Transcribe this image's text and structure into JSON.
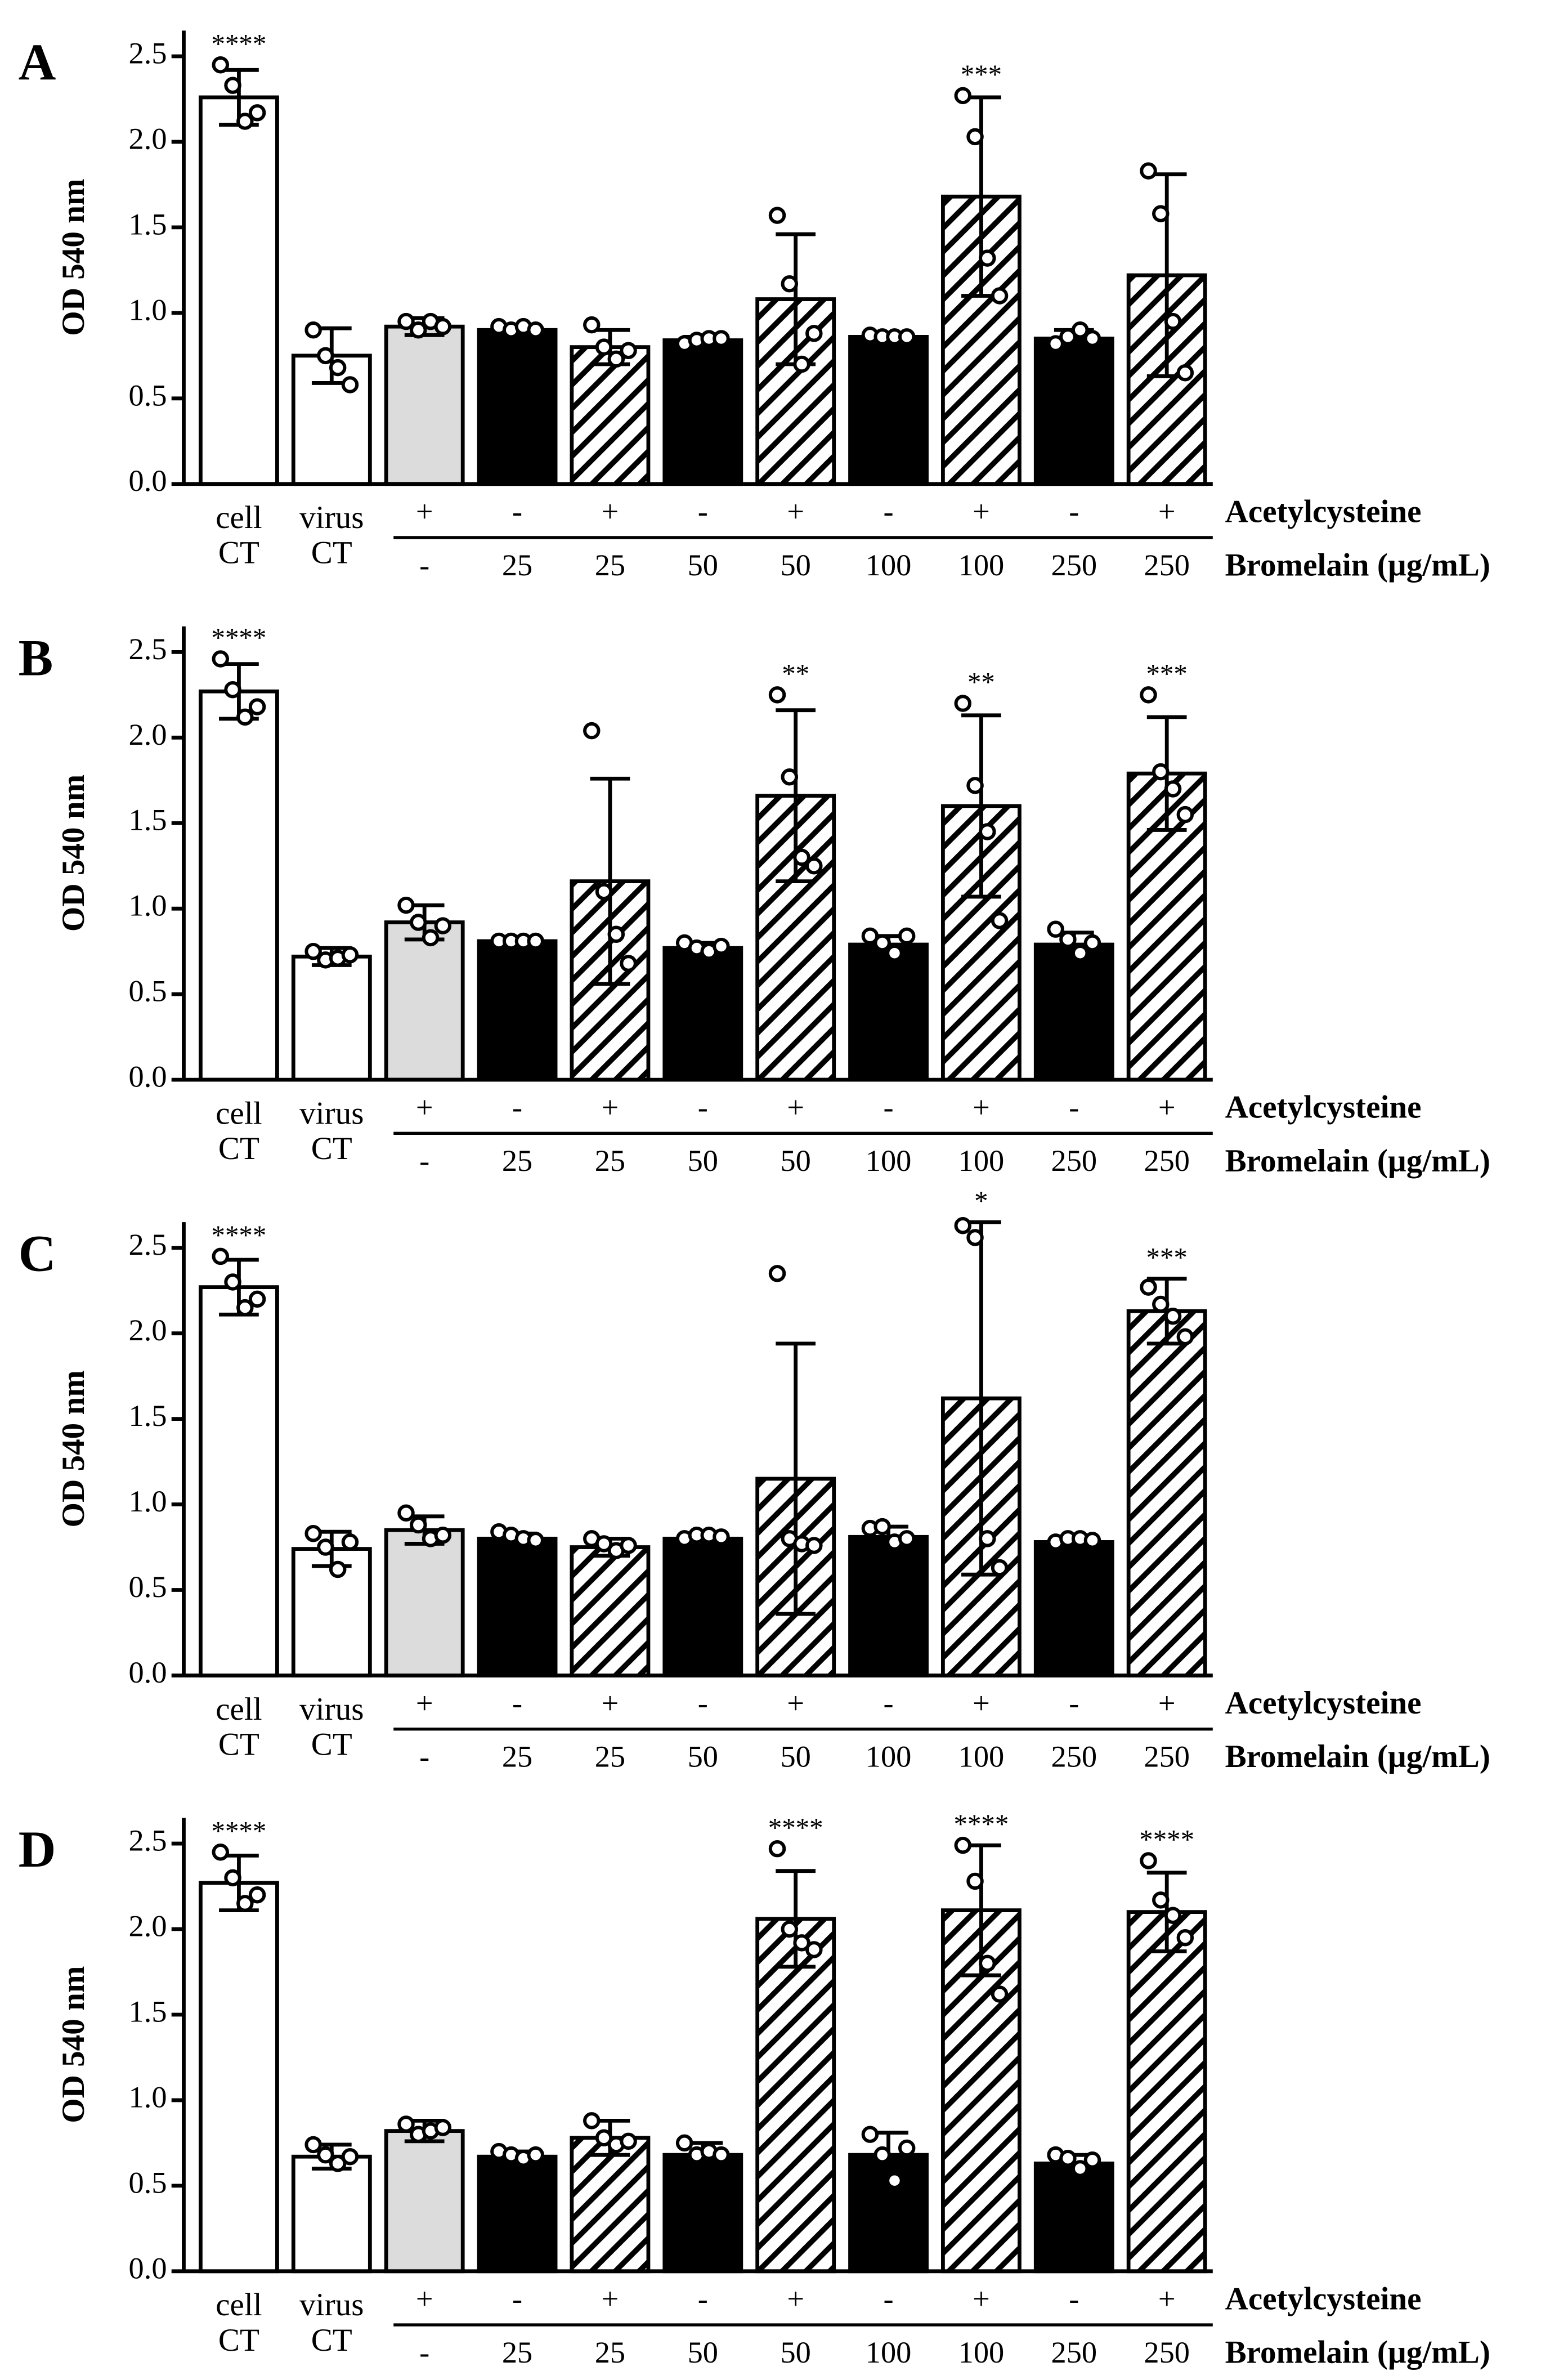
{
  "chart_data": [
    {
      "type": "bar",
      "panel_label": "A",
      "y_label": "OD 540 nm",
      "ylim": [
        0,
        2.65
      ],
      "yticks": [
        {
          "value": 0,
          "label": "0.0"
        },
        0.5,
        {
          "value": 1,
          "label": "1.0"
        },
        1.5,
        {
          "value": 2,
          "label": "2.0"
        },
        2.5
      ],
      "categories": [
        [
          "cell",
          "CT"
        ],
        [
          "virus",
          "CT"
        ],
        null,
        null,
        null,
        null,
        null,
        null,
        null,
        null,
        null
      ],
      "x_rows": [
        {
          "name": "Acetylcysteine",
          "labels": [
            null,
            null,
            "+",
            "-",
            "+",
            "-",
            "+",
            "-",
            "+",
            "-",
            "+"
          ]
        },
        {
          "name": "Bromelain (µg/mL)",
          "labels": [
            null,
            null,
            "-",
            "25",
            "25",
            "50",
            "50",
            "100",
            "100",
            "250",
            "250"
          ]
        }
      ],
      "bar_styles": [
        "open",
        "open",
        "gray",
        "solid",
        "hatched",
        "solid",
        "hatched",
        "solid",
        "hatched",
        "solid",
        "hatched"
      ],
      "values": [
        2.26,
        0.75,
        0.92,
        0.9,
        0.8,
        0.84,
        1.08,
        0.86,
        1.68,
        0.85,
        1.22
      ],
      "errors": [
        0.16,
        0.16,
        0.05,
        0.03,
        0.1,
        0.02,
        0.38,
        0.02,
        0.58,
        0.05,
        0.59
      ],
      "points": [
        [
          2.45,
          2.33,
          2.12,
          2.17
        ],
        [
          0.9,
          0.75,
          0.68,
          0.58
        ],
        [
          0.95,
          0.9,
          0.95,
          0.92
        ],
        [
          0.92,
          0.9,
          0.92,
          0.9
        ],
        [
          0.93,
          0.8,
          0.73,
          0.78
        ],
        [
          0.82,
          0.84,
          0.85,
          0.85
        ],
        [
          1.57,
          1.17,
          0.7,
          0.88
        ],
        [
          0.87,
          0.86,
          0.86,
          0.86
        ],
        [
          2.27,
          2.03,
          1.32,
          1.1
        ],
        [
          0.82,
          0.86,
          0.9,
          0.85
        ],
        [
          1.83,
          1.58,
          0.95,
          0.65
        ]
      ],
      "significance": [
        "****",
        null,
        null,
        null,
        null,
        null,
        null,
        null,
        "***",
        null,
        null
      ]
    },
    {
      "type": "bar",
      "panel_label": "B",
      "y_label": "OD 540 nm",
      "ylim": [
        0,
        2.65
      ],
      "yticks": [
        {
          "value": 0,
          "label": "0.0"
        },
        0.5,
        {
          "value": 1,
          "label": "1.0"
        },
        1.5,
        {
          "value": 2,
          "label": "2.0"
        },
        2.5
      ],
      "categories": [
        [
          "cell",
          "CT"
        ],
        [
          "virus",
          "CT"
        ],
        null,
        null,
        null,
        null,
        null,
        null,
        null,
        null,
        null
      ],
      "x_rows": [
        {
          "name": "Acetylcysteine",
          "labels": [
            null,
            null,
            "+",
            "-",
            "+",
            "-",
            "+",
            "-",
            "+",
            "-",
            "+"
          ]
        },
        {
          "name": "Bromelain (µg/mL)",
          "labels": [
            null,
            null,
            "-",
            "25",
            "25",
            "50",
            "50",
            "100",
            "100",
            "250",
            "250"
          ]
        }
      ],
      "bar_styles": [
        "open",
        "open",
        "gray",
        "solid",
        "hatched",
        "solid",
        "hatched",
        "solid",
        "hatched",
        "solid",
        "hatched"
      ],
      "values": [
        2.27,
        0.72,
        0.92,
        0.81,
        1.16,
        0.77,
        1.66,
        0.79,
        1.6,
        0.79,
        1.79
      ],
      "errors": [
        0.16,
        0.05,
        0.1,
        0.01,
        0.6,
        0.03,
        0.5,
        0.05,
        0.53,
        0.07,
        0.33
      ],
      "points": [
        [
          2.46,
          2.28,
          2.12,
          2.18
        ],
        [
          0.75,
          0.7,
          0.71,
          0.73
        ],
        [
          1.02,
          0.92,
          0.83,
          0.9
        ],
        [
          0.81,
          0.81,
          0.81,
          0.81
        ],
        [
          2.04,
          1.1,
          0.85,
          0.68
        ],
        [
          0.8,
          0.77,
          0.75,
          0.78
        ],
        [
          2.25,
          1.77,
          1.3,
          1.25
        ],
        [
          0.84,
          0.8,
          0.74,
          0.84
        ],
        [
          2.2,
          1.72,
          1.45,
          0.93
        ],
        [
          0.88,
          0.82,
          0.74,
          0.8
        ],
        [
          2.25,
          1.8,
          1.7,
          1.55
        ]
      ],
      "significance": [
        "****",
        null,
        null,
        null,
        null,
        null,
        "**",
        null,
        "**",
        null,
        "***"
      ]
    },
    {
      "type": "bar",
      "panel_label": "C",
      "y_label": "OD 540 nm",
      "ylim": [
        0,
        2.65
      ],
      "yticks": [
        {
          "value": 0,
          "label": "0.0"
        },
        0.5,
        {
          "value": 1,
          "label": "1.0"
        },
        1.5,
        {
          "value": 2,
          "label": "2.0"
        },
        2.5
      ],
      "categories": [
        [
          "cell",
          "CT"
        ],
        [
          "virus",
          "CT"
        ],
        null,
        null,
        null,
        null,
        null,
        null,
        null,
        null,
        null
      ],
      "x_rows": [
        {
          "name": "Acetylcysteine",
          "labels": [
            null,
            null,
            "+",
            "-",
            "+",
            "-",
            "+",
            "-",
            "+",
            "-",
            "+"
          ]
        },
        {
          "name": "Bromelain (µg/mL)",
          "labels": [
            null,
            null,
            "-",
            "25",
            "25",
            "50",
            "50",
            "100",
            "100",
            "250",
            "250"
          ]
        }
      ],
      "bar_styles": [
        "open",
        "open",
        "gray",
        "solid",
        "hatched",
        "solid",
        "hatched",
        "solid",
        "hatched",
        "solid",
        "hatched"
      ],
      "values": [
        2.27,
        0.74,
        0.85,
        0.8,
        0.75,
        0.8,
        1.15,
        0.81,
        1.62,
        0.78,
        2.13
      ],
      "errors": [
        0.16,
        0.1,
        0.08,
        0.03,
        0.05,
        0.02,
        0.79,
        0.06,
        1.03,
        0.02,
        0.19
      ],
      "points": [
        [
          2.45,
          2.3,
          2.15,
          2.2
        ],
        [
          0.83,
          0.75,
          0.62,
          0.78
        ],
        [
          0.95,
          0.88,
          0.8,
          0.82
        ],
        [
          0.84,
          0.82,
          0.8,
          0.79
        ],
        [
          0.8,
          0.77,
          0.73,
          0.76
        ],
        [
          0.8,
          0.82,
          0.82,
          0.81
        ],
        [
          2.35,
          0.8,
          0.77,
          0.76
        ],
        [
          0.86,
          0.87,
          0.78,
          0.8
        ],
        [
          2.63,
          2.56,
          0.8,
          0.63
        ],
        [
          0.78,
          0.8,
          0.8,
          0.79
        ],
        [
          2.27,
          2.17,
          2.1,
          1.98
        ]
      ],
      "significance": [
        "****",
        null,
        null,
        null,
        null,
        null,
        null,
        null,
        "*",
        null,
        "***"
      ]
    },
    {
      "type": "bar",
      "panel_label": "D",
      "y_label": "OD 540 nm",
      "ylim": [
        0,
        2.65
      ],
      "yticks": [
        {
          "value": 0,
          "label": "0.0"
        },
        0.5,
        {
          "value": 1,
          "label": "1.0"
        },
        1.5,
        {
          "value": 2,
          "label": "2.0"
        },
        2.5
      ],
      "categories": [
        [
          "cell",
          "CT"
        ],
        [
          "virus",
          "CT"
        ],
        null,
        null,
        null,
        null,
        null,
        null,
        null,
        null,
        null
      ],
      "x_rows": [
        {
          "name": "Acetylcysteine",
          "labels": [
            null,
            null,
            "+",
            "-",
            "+",
            "-",
            "+",
            "-",
            "+",
            "-",
            "+"
          ]
        },
        {
          "name": "Bromelain (µg/mL)",
          "labels": [
            null,
            null,
            "-",
            "25",
            "25",
            "50",
            "50",
            "100",
            "100",
            "250",
            "250"
          ]
        }
      ],
      "bar_styles": [
        "open",
        "open",
        "gray",
        "solid",
        "hatched",
        "solid",
        "hatched",
        "solid",
        "hatched",
        "solid",
        "hatched"
      ],
      "values": [
        2.27,
        0.67,
        0.82,
        0.67,
        0.78,
        0.68,
        2.06,
        0.68,
        2.11,
        0.63,
        2.1
      ],
      "errors": [
        0.16,
        0.07,
        0.06,
        0.03,
        0.1,
        0.07,
        0.28,
        0.13,
        0.38,
        0.05,
        0.23
      ],
      "points": [
        [
          2.45,
          2.3,
          2.15,
          2.2
        ],
        [
          0.74,
          0.68,
          0.63,
          0.67
        ],
        [
          0.86,
          0.8,
          0.82,
          0.84
        ],
        [
          0.7,
          0.68,
          0.66,
          0.68
        ],
        [
          0.88,
          0.78,
          0.74,
          0.76
        ],
        [
          0.75,
          0.68,
          0.7,
          0.68
        ],
        [
          2.47,
          2.0,
          1.92,
          1.88
        ],
        [
          0.8,
          0.68,
          0.53,
          0.72
        ],
        [
          2.49,
          2.28,
          1.8,
          1.62
        ],
        [
          0.68,
          0.66,
          0.6,
          0.65
        ],
        [
          2.4,
          2.17,
          2.08,
          1.95
        ]
      ],
      "significance": [
        "****",
        null,
        null,
        null,
        null,
        null,
        "****",
        null,
        "****",
        null,
        "****"
      ]
    }
  ]
}
